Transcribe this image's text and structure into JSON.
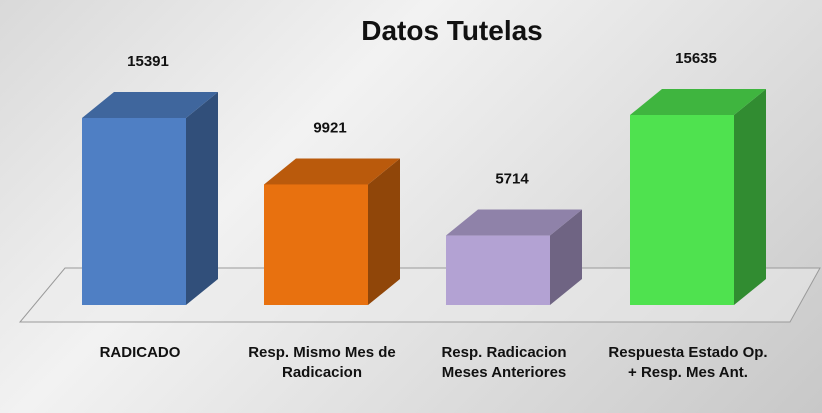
{
  "chart_data": {
    "type": "bar3d",
    "title": "Datos Tutelas",
    "categories": [
      "RADICADO",
      "Resp. Mismo Mes de Radicacion",
      "Resp. Radicacion Meses Anteriores",
      "Respuesta Estado Op. + Resp. Mes Ant."
    ],
    "values": [
      15391,
      9921,
      5714,
      15635
    ],
    "colors": [
      "#4f7fc4",
      "#e8710f",
      "#b3a2d3",
      "#4fe24f"
    ]
  }
}
